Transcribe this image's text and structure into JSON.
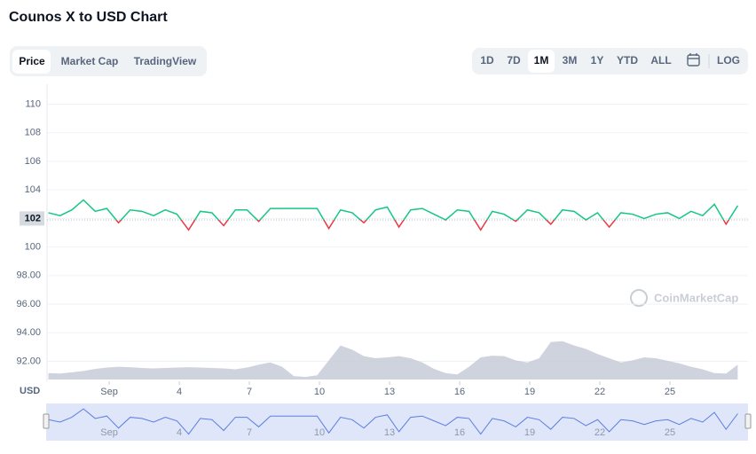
{
  "header": {
    "title": "Counos X to USD Chart"
  },
  "tabs": [
    "Price",
    "Market Cap",
    "TradingView"
  ],
  "ranges": [
    "1D",
    "7D",
    "1M",
    "3M",
    "1Y",
    "YTD",
    "ALL"
  ],
  "log_button": "LOG",
  "watermark": "CoinMarketCap",
  "chart_data": {
    "type": "line",
    "y_unit_label": "USD",
    "x": [
      -1.6,
      -1.1,
      -0.6,
      -0.1,
      0.4,
      0.9,
      1.4,
      1.9,
      2.4,
      2.9,
      3.4,
      3.9,
      4.4,
      4.9,
      5.4,
      5.9,
      6.4,
      6.9,
      7.4,
      7.9,
      8.4,
      8.9,
      9.4,
      9.9,
      10.4,
      10.9,
      11.4,
      11.9,
      12.4,
      12.9,
      13.4,
      13.9,
      14.4,
      14.9,
      15.4,
      15.9,
      16.4,
      16.9,
      17.4,
      17.9,
      18.4,
      18.9,
      19.4,
      19.9,
      20.4,
      20.9,
      21.4,
      21.9,
      22.4,
      22.9,
      23.4,
      23.9,
      24.4,
      24.9,
      25.4,
      25.9,
      26.4,
      26.9,
      27.4,
      27.9
    ],
    "series": [
      {
        "name": "Price",
        "color": "#16c784",
        "color_below": "#ea3943",
        "values": [
          102.4,
          102.2,
          102.6,
          103.3,
          102.5,
          102.7,
          101.7,
          102.6,
          102.5,
          102.2,
          102.6,
          102.3,
          101.2,
          102.5,
          102.4,
          101.5,
          102.6,
          102.6,
          101.8,
          102.7,
          102.7,
          102.7,
          102.7,
          102.7,
          101.3,
          102.6,
          102.4,
          101.7,
          102.6,
          102.8,
          101.4,
          102.6,
          102.7,
          102.3,
          101.9,
          102.6,
          102.5,
          101.2,
          102.5,
          102.3,
          101.8,
          102.6,
          102.4,
          101.6,
          102.6,
          102.5,
          101.9,
          102.4,
          101.4,
          102.4,
          102.3,
          102.0,
          102.3,
          102.4,
          102.0,
          102.5,
          102.2,
          103.0,
          101.6,
          102.9
        ]
      },
      {
        "name": "Volume",
        "color": "#c3c8d4",
        "values": [
          15,
          14,
          17,
          20,
          25,
          28,
          30,
          29,
          27,
          26,
          27,
          28,
          29,
          28,
          27,
          26,
          24,
          28,
          35,
          40,
          30,
          8,
          6,
          10,
          45,
          80,
          70,
          55,
          50,
          52,
          55,
          50,
          40,
          25,
          15,
          12,
          30,
          52,
          56,
          55,
          45,
          40,
          50,
          88,
          90,
          80,
          72,
          60,
          50,
          40,
          45,
          52,
          50,
          44,
          38,
          30,
          24,
          15,
          14,
          35
        ]
      }
    ],
    "baseline": 101.9,
    "xlim": [
      -1.66,
      28.34
    ],
    "xticks": [
      {
        "value": 1,
        "label": "Sep"
      },
      4,
      7,
      10,
      13,
      16,
      19,
      22,
      25
    ],
    "ylim": [
      90.6,
      111.4
    ],
    "yticks": [
      110,
      108,
      106,
      104,
      102,
      100,
      {
        "value": 98,
        "label": "98.00"
      },
      {
        "value": 96,
        "label": "96.00"
      },
      {
        "value": 94,
        "label": "94.00"
      },
      {
        "value": 92,
        "label": "92.00"
      }
    ],
    "volume_lim": [
      0,
      100
    ],
    "navigator_ylim": [
      100.8,
      103.6
    ],
    "grid": true
  }
}
